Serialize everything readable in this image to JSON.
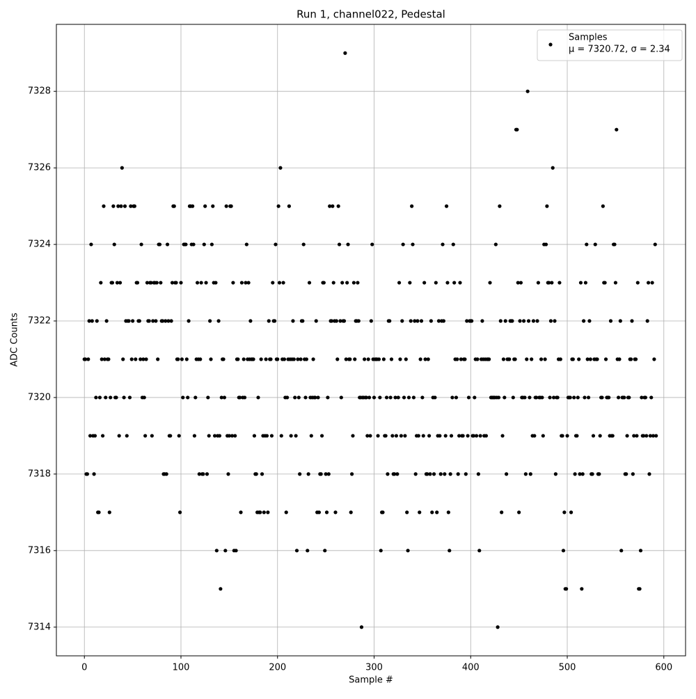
{
  "chart_data": {
    "type": "scatter",
    "title": "Run 1, channel022, Pedestal",
    "x_label": "Sample #",
    "y_label": "ADC Counts",
    "xlim": [
      -29,
      622.5
    ],
    "ylim": [
      7313.25,
      7329.75
    ],
    "xticks": [
      0,
      100,
      200,
      300,
      400,
      500,
      600
    ],
    "yticks": [
      7314,
      7316,
      7318,
      7320,
      7322,
      7324,
      7326,
      7328
    ],
    "grid": true,
    "legend": "upper right",
    "series": [
      {
        "name": "Samples",
        "legend_note": "μ = 7320.72, σ = 2.34",
        "color": "#000000",
        "x": [
          0,
          1,
          2,
          3,
          4,
          5,
          6,
          7,
          8,
          9,
          10,
          11,
          12,
          13,
          14,
          15,
          16,
          17,
          18,
          19,
          20,
          21,
          22,
          23,
          24,
          25,
          26,
          27,
          28,
          29,
          30,
          31,
          32,
          33,
          34,
          35,
          36,
          37,
          38,
          39,
          40,
          41,
          42,
          43,
          44,
          45,
          46,
          47,
          48,
          49,
          50,
          51,
          52,
          53,
          54,
          55,
          56,
          57,
          58,
          59,
          60,
          61,
          62,
          63,
          64,
          65,
          66,
          67,
          68,
          69,
          70,
          71,
          72,
          73,
          74,
          75,
          76,
          77,
          78,
          79,
          80,
          81,
          82,
          83,
          84,
          85,
          86,
          87,
          88,
          89,
          90,
          91,
          92,
          93,
          94,
          95,
          96,
          97,
          98,
          99,
          100,
          101,
          102,
          103,
          104,
          105,
          106,
          107,
          108,
          109,
          110,
          111,
          112,
          113,
          114,
          115,
          116,
          117,
          118,
          119,
          120,
          121,
          122,
          123,
          124,
          125,
          126,
          127,
          128,
          129,
          130,
          131,
          132,
          133,
          134,
          135,
          136,
          137,
          138,
          139,
          140,
          141,
          142,
          143,
          144,
          145,
          146,
          147,
          148,
          149,
          150,
          151,
          152,
          153,
          154,
          155,
          156,
          157,
          158,
          159,
          160,
          161,
          162,
          163,
          164,
          165,
          166,
          167,
          168,
          169,
          170,
          171,
          172,
          173,
          174,
          175,
          176,
          177,
          178,
          179,
          180,
          181,
          182,
          183,
          184,
          185,
          186,
          187,
          188,
          189,
          190,
          191,
          192,
          193,
          194,
          195,
          196,
          197,
          198,
          199,
          200,
          201,
          202,
          203,
          204,
          205,
          206,
          207,
          208,
          209,
          210,
          211,
          212,
          213,
          214,
          215,
          216,
          217,
          218,
          219,
          220,
          221,
          222,
          223,
          224,
          225,
          226,
          227,
          228,
          229,
          230,
          231,
          232,
          233,
          234,
          235,
          236,
          237,
          238,
          239,
          240,
          241,
          242,
          243,
          244,
          245,
          246,
          247,
          248,
          249,
          250,
          251,
          252,
          253,
          254,
          255,
          256,
          257,
          258,
          259,
          260,
          261,
          262,
          263,
          264,
          265,
          266,
          267,
          268,
          269,
          270,
          271,
          272,
          273,
          274,
          275,
          276,
          277,
          278,
          279,
          280,
          281,
          282,
          283,
          284,
          285,
          286,
          287,
          288,
          289,
          290,
          291,
          292,
          293,
          294,
          295,
          296,
          297,
          298,
          299,
          300,
          301,
          302,
          303,
          304,
          305,
          306,
          307,
          308,
          309,
          310,
          311,
          312,
          313,
          314,
          315,
          316,
          317,
          318,
          319,
          320,
          321,
          322,
          323,
          324,
          325,
          326,
          327,
          328,
          329,
          330,
          331,
          332,
          333,
          334,
          335,
          336,
          337,
          338,
          339,
          340,
          341,
          342,
          343,
          344,
          345,
          346,
          347,
          348,
          349,
          350,
          351,
          352,
          353,
          354,
          355,
          356,
          357,
          358,
          359,
          360,
          361,
          362,
          363,
          364,
          365,
          366,
          367,
          368,
          369,
          370,
          371,
          372,
          373,
          374,
          375,
          376,
          377,
          378,
          379,
          380,
          381,
          382,
          383,
          384,
          385,
          386,
          387,
          388,
          389,
          390,
          391,
          392,
          393,
          394,
          395,
          396,
          397,
          398,
          399,
          400,
          401,
          402,
          403,
          404,
          405,
          406,
          407,
          408,
          409,
          410,
          411,
          412,
          413,
          414,
          415,
          416,
          417,
          418,
          419,
          420,
          421,
          422,
          423,
          424,
          425,
          426,
          427,
          428,
          429,
          430,
          431,
          432,
          433,
          434,
          435,
          436,
          437,
          438,
          439,
          440,
          441,
          442,
          443,
          444,
          445,
          446,
          447,
          448,
          449,
          450,
          451,
          452,
          453,
          454,
          455,
          456,
          457,
          458,
          459,
          460,
          461,
          462,
          463,
          464,
          465,
          466,
          467,
          468,
          469,
          470,
          471,
          472,
          473,
          474,
          475,
          476,
          477,
          478,
          479,
          480,
          481,
          482,
          483,
          484,
          485,
          486,
          487,
          488,
          489,
          490,
          491,
          492,
          493,
          494,
          495,
          496,
          497,
          498,
          499,
          500,
          501,
          502,
          503,
          504,
          505,
          506,
          507,
          508,
          509,
          510,
          511,
          512,
          513,
          514,
          515,
          516,
          517,
          518,
          519,
          520,
          521,
          522,
          523,
          524,
          525,
          526,
          527,
          528,
          529,
          530,
          531,
          532,
          533,
          534,
          535,
          536,
          537,
          538,
          539,
          540,
          541,
          542,
          543,
          544,
          545,
          546,
          547,
          548,
          549,
          550,
          551,
          552,
          553,
          554,
          555,
          556,
          557,
          558,
          559,
          560,
          561,
          562,
          563,
          564,
          565,
          566,
          567,
          568,
          569,
          570,
          571,
          572,
          573,
          574,
          575,
          576,
          577,
          578,
          579,
          580,
          581,
          582,
          583,
          584,
          585,
          586,
          587,
          588,
          589,
          590,
          591,
          592
        ],
        "values": [
          7321,
          7321,
          7318,
          7318,
          7321,
          7322,
          7319,
          7324,
          7322,
          7319,
          7318,
          7319,
          7320,
          7322,
          7317,
          7317,
          7320,
          7323,
          7321,
          7319,
          7325,
          7321,
          7320,
          7322,
          7321,
          7321,
          7317,
          7320,
          7323,
          7323,
          7325,
          7324,
          7320,
          7320,
          7323,
          7325,
          7319,
          7323,
          7325,
          7326,
          7321,
          7320,
          7325,
          7322,
          7319,
          7322,
          7322,
          7320,
          7325,
          7321,
          7322,
          7325,
          7325,
          7321,
          7323,
          7323,
          7322,
          7322,
          7321,
          7324,
          7320,
          7321,
          7320,
          7319,
          7321,
          7323,
          7322,
          7322,
          7323,
          7323,
          7319,
          7322,
          7323,
          7323,
          7322,
          7323,
          7321,
          7324,
          7324,
          7323,
          7322,
          7322,
          7318,
          7318,
          7322,
          7318,
          7324,
          7322,
          7319,
          7319,
          7322,
          7323,
          7325,
          7325,
          7323,
          7323,
          7321,
          7321,
          7319,
          7317,
          7323,
          7321,
          7320,
          7324,
          7324,
          7324,
          7321,
          7320,
          7322,
          7325,
          7325,
          7324,
          7325,
          7324,
          7319,
          7320,
          7321,
          7323,
          7321,
          7318,
          7321,
          7323,
          7318,
          7318,
          7324,
          7325,
          7323,
          7318,
          7320,
          7319,
          7322,
          7321,
          7324,
          7325,
          7323,
          7319,
          7323,
          7316,
          7319,
          7322,
          7319,
          7315,
          7320,
          7321,
          7321,
          7320,
          7316,
          7325,
          7319,
          7318,
          7319,
          7325,
          7325,
          7319,
          7323,
          7316,
          7319,
          7316,
          7321,
          7321,
          7320,
          7320,
          7317,
          7323,
          7320,
          7321,
          7320,
          7323,
          7324,
          7321,
          7323,
          7321,
          7322,
          7321,
          7321,
          7321,
          7319,
          7318,
          7318,
          7317,
          7320,
          7317,
          7317,
          7321,
          7318,
          7319,
          7317,
          7319,
          7321,
          7319,
          7317,
          7322,
          7321,
          7321,
          7319,
          7323,
          7322,
          7322,
          7324,
          7321,
          7321,
          7325,
          7323,
          7326,
          7319,
          7321,
          7323,
          7321,
          7320,
          7317,
          7320,
          7321,
          7325,
          7321,
          7319,
          7321,
          7322,
          7321,
          7320,
          7319,
          7316,
          7321,
          7320,
          7318,
          7321,
          7322,
          7322,
          7324,
          7321,
          7320,
          7321,
          7316,
          7318,
          7323,
          7320,
          7319,
          7320,
          7321,
          7320,
          7320,
          7322,
          7317,
          7320,
          7317,
          7318,
          7318,
          7319,
          7323,
          7323,
          7316,
          7318,
          7317,
          7320,
          7318,
          7325,
          7322,
          7322,
          7325,
          7323,
          7322,
          7317,
          7322,
          7321,
          7325,
          7324,
          7322,
          7320,
          7323,
          7322,
          7322,
          7329,
          7321,
          7323,
          7324,
          7321,
          7321,
          7317,
          7318,
          7319,
          7323,
          7321,
          7322,
          7322,
          7323,
          7322,
          7320,
          7320,
          7314,
          7320,
          7320,
          7321,
          7320,
          7320,
          7319,
          7321,
          7320,
          7319,
          7322,
          7324,
          7321,
          7320,
          7321,
          7321,
          7321,
          7319,
          7321,
          7320,
          7316,
          7317,
          7317,
          7321,
          7319,
          7319,
          7320,
          7318,
          7322,
          7322,
          7320,
          7321,
          7319,
          7318,
          7318,
          7320,
          7319,
          7318,
          7320,
          7323,
          7321,
          7319,
          7322,
          7324,
          7320,
          7319,
          7321,
          7317,
          7316,
          7320,
          7323,
          7322,
          7325,
          7324,
          7320,
          7322,
          7318,
          7319,
          7322,
          7319,
          7317,
          7321,
          7322,
          7320,
          7319,
          7323,
          7321,
          7318,
          7318,
          7321,
          7319,
          7318,
          7322,
          7317,
          7320,
          7318,
          7320,
          7323,
          7317,
          7319,
          7322,
          7319,
          7318,
          7322,
          7324,
          7322,
          7318,
          7319,
          7325,
          7323,
          7317,
          7316,
          7318,
          7319,
          7320,
          7324,
          7323,
          7321,
          7320,
          7321,
          7318,
          7319,
          7323,
          7321,
          7319,
          7319,
          7321,
          7321,
          7318,
          7322,
          7319,
          7320,
          7322,
          7322,
          7322,
          7319,
          7319,
          7320,
          7321,
          7319,
          7321,
          7318,
          7316,
          7319,
          7321,
          7322,
          7321,
          7319,
          7321,
          7319,
          7321,
          7321,
          7321,
          7323,
          7320,
          7320,
          7320,
          7320,
          7320,
          7324,
          7320,
          7314,
          7320,
          7325,
          7322,
          7317,
          7319,
          7321,
          7320,
          7322,
          7318,
          7321,
          7321,
          7321,
          7322,
          7322,
          7322,
          7320,
          7321,
          7321,
          7327,
          7327,
          7323,
          7317,
          7322,
          7323,
          7320,
          7320,
          7322,
          7320,
          7318,
          7321,
          7328,
          7322,
          7320,
          7318,
          7321,
          7319,
          7322,
          7319,
          7320,
          7320,
          7322,
          7323,
          7320,
          7320,
          7321,
          7320,
          7319,
          7324,
          7321,
          7324,
          7325,
          7323,
          7323,
          7320,
          7322,
          7323,
          7326,
          7320,
          7322,
          7318,
          7320,
          7320,
          7321,
          7323,
          7321,
          7319,
          7319,
          7316,
          7317,
          7315,
          7315,
          7319,
          7320,
          7320,
          7320,
          7317,
          7321,
          7321,
          7320,
          7318,
          7319,
          7319,
          7320,
          7321,
          7318,
          7323,
          7315,
          7318,
          7322,
          7320,
          7323,
          7324,
          7321,
          7320,
          7322,
          7321,
          7318,
          7318,
          7319,
          7321,
          7324,
          7321,
          7321,
          7318,
          7318,
          7319,
          7320,
          7320,
          7325,
          7323,
          7323,
          7321,
          7320,
          7320,
          7320,
          7319,
          7322,
          7319,
          7319,
          7324,
          7324,
          7323,
          7327,
          7321,
          7320,
          7321,
          7322,
          7316,
          7320,
          7320,
          7320,
          7318,
          7318,
          7319,
          7320,
          7320,
          7321,
          7321,
          7322,
          7318,
          7319,
          7321,
          7321,
          7319,
          7323,
          7315,
          7315,
          7316,
          7320,
          7319,
          7319,
          7320,
          7320,
          7319,
          7322,
          7323,
          7318,
          7319,
          7320,
          7323,
          7319,
          7321,
          7324,
          7319
        ]
      }
    ]
  }
}
